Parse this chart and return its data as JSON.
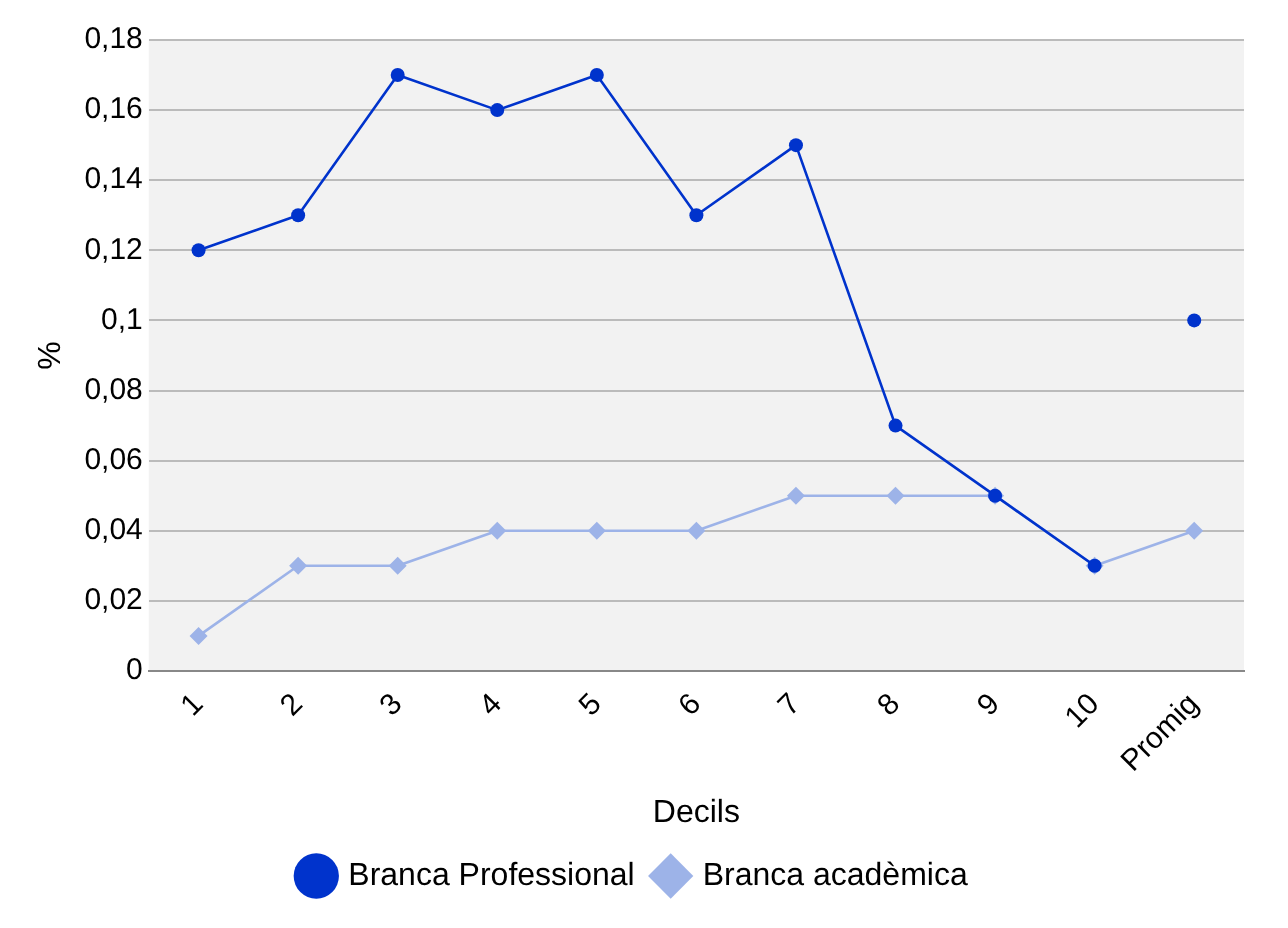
{
  "chart_data": {
    "type": "line",
    "xlabel": "Decils",
    "ylabel": "%",
    "categories": [
      "1",
      "2",
      "3",
      "4",
      "5",
      "6",
      "7",
      "8",
      "9",
      "10",
      "Promig"
    ],
    "series": [
      {
        "name": "Branca acadèmica",
        "color": "#9db3e8",
        "marker": "diamond",
        "values": [
          0.01,
          0.03,
          0.03,
          0.04,
          0.04,
          0.04,
          0.05,
          0.05,
          0.05,
          0.03,
          0.04
        ]
      },
      {
        "name": "Branca Professional",
        "color": "#0033cc",
        "marker": "circle",
        "values": [
          0.12,
          0.13,
          0.17,
          0.16,
          0.17,
          0.13,
          0.15,
          0.07,
          0.05,
          0.03,
          null
        ]
      },
      {
        "type": "scatter",
        "color": "#0033cc",
        "marker": "circle",
        "x": [
          "Promig"
        ],
        "values": [
          0.1
        ]
      }
    ],
    "ylim": [
      0,
      0.18
    ],
    "yticks": [
      0,
      {
        "value": 0.02,
        "label": "0,02"
      },
      {
        "value": 0.04,
        "label": "0,04"
      },
      {
        "value": 0.06,
        "label": "0,06"
      },
      {
        "value": 0.08,
        "label": "0,08"
      },
      {
        "value": 0.1,
        "label": "0,1"
      },
      {
        "value": 0.12,
        "label": "0,12"
      },
      {
        "value": 0.14,
        "label": "0,14"
      },
      {
        "value": 0.16,
        "label": "0,16"
      },
      {
        "value": 0.18,
        "label": "0,18"
      }
    ],
    "grid": "y",
    "legend": "bottom"
  }
}
